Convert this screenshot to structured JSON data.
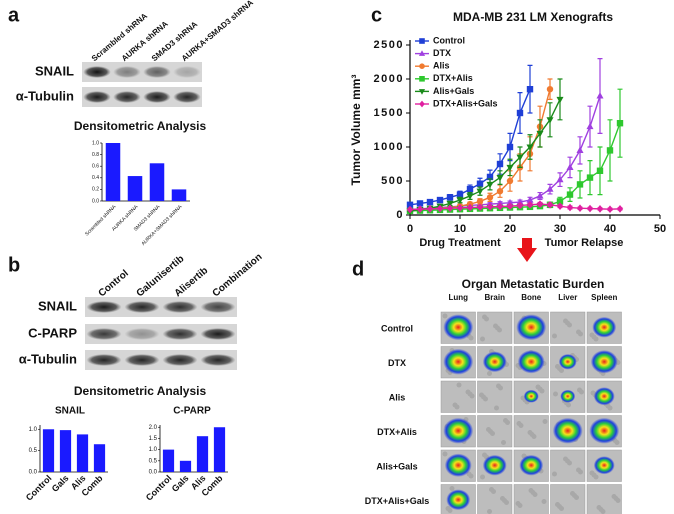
{
  "panel_a": {
    "letter": "a",
    "lanes": [
      "Scrambled shRNA",
      "AURKA shRNA",
      "SMAD3 shRNA",
      "AURKA+SMAD3 shRNA"
    ],
    "rows": [
      "SNAIL",
      "α-Tubulin"
    ]
  },
  "panel_b": {
    "letter": "b",
    "lanes": [
      "Control",
      "Galunisertib",
      "Alisertib",
      "Combination"
    ],
    "rows": [
      "SNAIL",
      "C-PARP",
      "α-Tubulin"
    ],
    "subtitle": "Densitometric Analysis"
  },
  "panel_c": {
    "letter": "c"
  },
  "panel_d": {
    "letter": "d",
    "title": "Organ Metastatic Burden",
    "columns": [
      "Lung",
      "Brain",
      "Bone",
      "Liver",
      "Spleen"
    ],
    "rows": [
      "Control",
      "DTX",
      "Alis",
      "DTX+Alis",
      "Alis+Gals",
      "DTX+Alis+Gals"
    ]
  },
  "chart_data": [
    {
      "type": "bar",
      "title": "Densitometric Analysis",
      "categories": [
        "Scrambled shRNA",
        "AURKA shRNA",
        "SMAD3 shRNA",
        "AURKA+SMAD3 shRNA"
      ],
      "values": [
        1.0,
        0.43,
        0.65,
        0.2
      ],
      "color": "#1a1aff",
      "ylim": [
        0,
        1.0
      ],
      "yticks": [
        {
          "value": 0,
          "label": "0.0"
        },
        {
          "value": 0.2,
          "label": "0.2"
        },
        {
          "value": 0.4,
          "label": "0.4"
        },
        {
          "value": 0.6,
          "label": "0.6"
        },
        {
          "value": 0.8,
          "label": "0.8"
        },
        {
          "value": 1.0,
          "label": "1.0"
        }
      ]
    },
    {
      "type": "bar",
      "title": "SNAIL",
      "categories": [
        "Control",
        "Gals",
        "Alis",
        "Comb"
      ],
      "values": [
        1.0,
        0.98,
        0.88,
        0.65
      ],
      "color": "#1a1aff",
      "ylim": [
        0,
        1.1
      ],
      "yticks": [
        {
          "value": 0,
          "label": "0.0"
        },
        {
          "value": 0.5,
          "label": "0.5"
        },
        {
          "value": 1.0,
          "label": "1.0"
        }
      ]
    },
    {
      "type": "bar",
      "title": "C-PARP",
      "categories": [
        "Control",
        "Gals",
        "Alis",
        "Comb"
      ],
      "values": [
        1.0,
        0.5,
        1.6,
        2.0
      ],
      "color": "#1a1aff",
      "ylim": [
        0,
        2.1
      ],
      "yticks": [
        {
          "value": 0,
          "label": "0.0"
        },
        {
          "value": 0.5,
          "label": "0.5"
        },
        {
          "value": 1.0,
          "label": "1.0"
        },
        {
          "value": 1.5,
          "label": "1.5"
        },
        {
          "value": 2.0,
          "label": "2.0"
        }
      ]
    },
    {
      "type": "line",
      "title": "MDA-MB 231 LM Xenografts",
      "y_label": "Tumor Volume mm³",
      "annotations": [
        "Drug Treatment",
        "Tumor Relapse"
      ],
      "xlim": [
        0,
        50
      ],
      "xticks": [
        0,
        10,
        20,
        30,
        40,
        50
      ],
      "ylim": [
        0,
        2500
      ],
      "yticks": [
        0,
        500,
        1000,
        1500,
        2000,
        2500
      ],
      "legend": "upper left",
      "series": [
        {
          "name": "Control",
          "color": "#1f3fd6",
          "marker": "square",
          "x": [
            0,
            2,
            4,
            6,
            8,
            10,
            12,
            14,
            16,
            18,
            20,
            22,
            24
          ],
          "values": [
            150,
            170,
            190,
            220,
            260,
            300,
            380,
            460,
            560,
            750,
            1000,
            1500,
            1850
          ],
          "errors": [
            20,
            20,
            25,
            30,
            40,
            50,
            60,
            80,
            100,
            150,
            200,
            300,
            350
          ]
        },
        {
          "name": "DTX",
          "color": "#a040e0",
          "marker": "triangle",
          "x": [
            0,
            2,
            4,
            6,
            8,
            10,
            12,
            14,
            16,
            18,
            20,
            22,
            24,
            26,
            28,
            30,
            32,
            34,
            36,
            38
          ],
          "values": [
            80,
            90,
            100,
            110,
            120,
            130,
            140,
            150,
            160,
            170,
            180,
            190,
            220,
            280,
            380,
            520,
            700,
            950,
            1300,
            1750
          ],
          "errors": [
            10,
            10,
            10,
            15,
            15,
            15,
            20,
            20,
            20,
            25,
            25,
            30,
            40,
            50,
            70,
            100,
            150,
            200,
            300,
            550
          ]
        },
        {
          "name": "Alis",
          "color": "#f07a30",
          "marker": "circle",
          "x": [
            0,
            2,
            4,
            6,
            8,
            10,
            12,
            14,
            16,
            18,
            20,
            22,
            24,
            26,
            28
          ],
          "values": [
            70,
            80,
            90,
            100,
            110,
            130,
            160,
            200,
            260,
            350,
            500,
            700,
            900,
            1300,
            1850
          ],
          "errors": [
            10,
            10,
            10,
            15,
            15,
            20,
            30,
            40,
            60,
            90,
            150,
            200,
            250,
            300,
            150
          ]
        },
        {
          "name": "DTX+Alis",
          "color": "#2ec82e",
          "marker": "square",
          "x": [
            0,
            2,
            4,
            6,
            8,
            10,
            12,
            14,
            16,
            18,
            20,
            22,
            24,
            26,
            28,
            30,
            32,
            34,
            36,
            38,
            40,
            42
          ],
          "values": [
            60,
            65,
            70,
            75,
            80,
            85,
            90,
            95,
            100,
            105,
            110,
            115,
            120,
            130,
            150,
            200,
            300,
            450,
            550,
            650,
            950,
            1350
          ],
          "errors": [
            10,
            10,
            10,
            10,
            10,
            10,
            15,
            15,
            15,
            15,
            20,
            20,
            20,
            30,
            40,
            60,
            100,
            200,
            250,
            350,
            450,
            500
          ]
        },
        {
          "name": "Alis+Gals",
          "color": "#1a8a1a",
          "marker": "triangle-down",
          "x": [
            0,
            2,
            4,
            6,
            8,
            10,
            12,
            14,
            16,
            18,
            20,
            22,
            24,
            26,
            28,
            30
          ],
          "values": [
            60,
            80,
            100,
            130,
            170,
            220,
            280,
            350,
            450,
            550,
            700,
            850,
            1000,
            1200,
            1400,
            1700
          ],
          "errors": [
            10,
            10,
            15,
            20,
            30,
            40,
            50,
            60,
            80,
            100,
            120,
            150,
            180,
            200,
            250,
            300
          ]
        },
        {
          "name": "DTX+Alis+Gals",
          "color": "#e020a0",
          "marker": "diamond",
          "x": [
            0,
            2,
            4,
            6,
            8,
            10,
            12,
            14,
            16,
            18,
            20,
            22,
            24,
            26,
            28,
            30,
            32,
            34,
            36,
            38,
            40,
            42
          ],
          "values": [
            80,
            85,
            90,
            95,
            100,
            105,
            110,
            115,
            120,
            125,
            130,
            140,
            150,
            160,
            150,
            130,
            110,
            100,
            95,
            90,
            85,
            90
          ],
          "errors": [
            10,
            10,
            10,
            10,
            10,
            10,
            15,
            15,
            15,
            15,
            20,
            20,
            20,
            25,
            25,
            20,
            20,
            15,
            15,
            15,
            15,
            15
          ]
        }
      ]
    }
  ]
}
